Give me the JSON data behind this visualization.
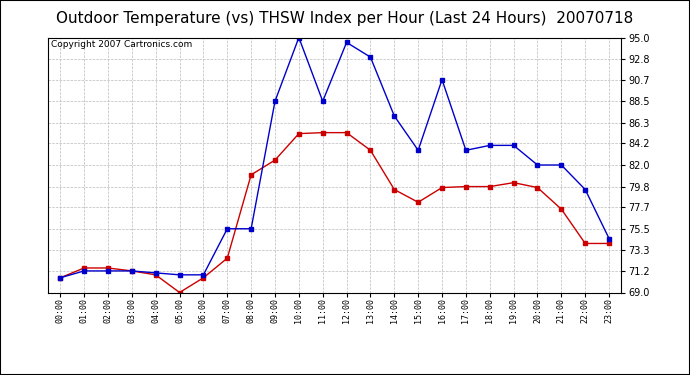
{
  "title": "Outdoor Temperature (vs) THSW Index per Hour (Last 24 Hours)  20070718",
  "copyright": "Copyright 2007 Cartronics.com",
  "hours": [
    "00:00",
    "01:00",
    "02:00",
    "03:00",
    "04:00",
    "05:00",
    "06:00",
    "07:00",
    "08:00",
    "09:00",
    "10:00",
    "11:00",
    "12:00",
    "13:00",
    "14:00",
    "15:00",
    "16:00",
    "17:00",
    "18:00",
    "19:00",
    "20:00",
    "21:00",
    "22:00",
    "23:00"
  ],
  "temp_red": [
    70.5,
    71.5,
    71.5,
    71.2,
    70.8,
    69.0,
    70.5,
    72.5,
    81.0,
    82.5,
    85.2,
    85.3,
    85.3,
    83.5,
    79.5,
    78.2,
    79.7,
    79.8,
    79.8,
    80.2,
    79.7,
    77.5,
    74.0,
    74.0
  ],
  "thsw_blue": [
    70.5,
    71.2,
    71.2,
    71.2,
    71.0,
    70.8,
    70.8,
    75.5,
    75.5,
    88.5,
    95.0,
    88.5,
    94.5,
    93.0,
    87.0,
    83.5,
    90.7,
    83.5,
    84.0,
    84.0,
    82.0,
    82.0,
    79.5,
    74.5
  ],
  "ylim": [
    69.0,
    95.0
  ],
  "yticks": [
    69.0,
    71.2,
    73.3,
    75.5,
    77.7,
    79.8,
    82.0,
    84.2,
    86.3,
    88.5,
    90.7,
    92.8,
    95.0
  ],
  "bg_color": "#ffffff",
  "plot_bg": "#ffffff",
  "grid_color": "#bbbbbb",
  "red_color": "#cc0000",
  "blue_color": "#0000cc",
  "title_fontsize": 11,
  "copyright_fontsize": 6.5
}
